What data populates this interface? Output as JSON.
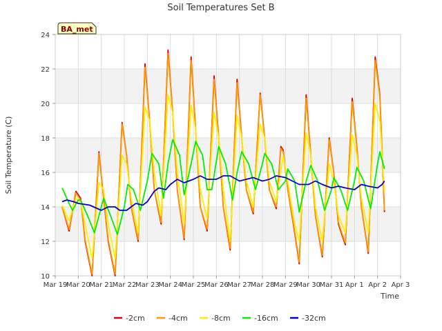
{
  "chart_data": {
    "type": "line",
    "title": "Soil Temperatures Set B",
    "xlabel": "Time",
    "ylabel": "Soil Temperature (C)",
    "badge": "BA_met",
    "ylim": [
      10,
      24
    ],
    "yticks": [
      10,
      12,
      14,
      16,
      18,
      20,
      22,
      24
    ],
    "xlim": [
      0,
      15
    ],
    "xticks": [
      {
        "x": 0,
        "label": "Mar 19"
      },
      {
        "x": 1,
        "label": "Mar 20"
      },
      {
        "x": 2,
        "label": "Mar 21"
      },
      {
        "x": 3,
        "label": "Mar 22"
      },
      {
        "x": 4,
        "label": "Mar 23"
      },
      {
        "x": 5,
        "label": "Mar 24"
      },
      {
        "x": 6,
        "label": "Mar 25"
      },
      {
        "x": 7,
        "label": "Mar 26"
      },
      {
        "x": 8,
        "label": "Mar 27"
      },
      {
        "x": 9,
        "label": "Mar 28"
      },
      {
        "x": 10,
        "label": "Mar 29"
      },
      {
        "x": 11,
        "label": "Mar 30"
      },
      {
        "x": 12,
        "label": "Mar 31"
      },
      {
        "x": 13,
        "label": "Apr 1"
      },
      {
        "x": 14,
        "label": "Apr 2"
      },
      {
        "x": 15,
        "label": "Apr 3"
      }
    ],
    "grid": true,
    "legend_position": "bottom",
    "x_units": "days since Mar 19",
    "series": [
      {
        "name": "-2cm",
        "color": "#dd0000",
        "points": [
          [
            0.3,
            14.0
          ],
          [
            0.6,
            12.6
          ],
          [
            0.9,
            14.9
          ],
          [
            1.1,
            14.5
          ],
          [
            1.3,
            12.0
          ],
          [
            1.6,
            10.0
          ],
          [
            1.9,
            17.2
          ],
          [
            2.1,
            14.5
          ],
          [
            2.3,
            12.0
          ],
          [
            2.6,
            10.0
          ],
          [
            2.9,
            18.9
          ],
          [
            3.1,
            17.0
          ],
          [
            3.3,
            14.0
          ],
          [
            3.6,
            12.0
          ],
          [
            3.9,
            22.3
          ],
          [
            4.1,
            19.0
          ],
          [
            4.3,
            15.0
          ],
          [
            4.6,
            13.0
          ],
          [
            4.9,
            23.1
          ],
          [
            5.1,
            19.5
          ],
          [
            5.3,
            15.0
          ],
          [
            5.6,
            12.1
          ],
          [
            5.9,
            22.7
          ],
          [
            6.1,
            18.5
          ],
          [
            6.3,
            14.0
          ],
          [
            6.6,
            12.6
          ],
          [
            6.9,
            21.6
          ],
          [
            7.1,
            18.0
          ],
          [
            7.3,
            14.0
          ],
          [
            7.6,
            11.5
          ],
          [
            7.9,
            21.4
          ],
          [
            8.1,
            18.0
          ],
          [
            8.3,
            15.0
          ],
          [
            8.6,
            13.6
          ],
          [
            8.9,
            20.6
          ],
          [
            9.1,
            18.0
          ],
          [
            9.3,
            15.0
          ],
          [
            9.6,
            13.9
          ],
          [
            9.8,
            17.5
          ],
          [
            9.9,
            17.3
          ],
          [
            10.1,
            15.0
          ],
          [
            10.4,
            12.5
          ],
          [
            10.6,
            10.7
          ],
          [
            10.9,
            20.5
          ],
          [
            11.1,
            17.0
          ],
          [
            11.3,
            13.5
          ],
          [
            11.6,
            11.1
          ],
          [
            11.9,
            18.0
          ],
          [
            12.1,
            16.0
          ],
          [
            12.3,
            13.0
          ],
          [
            12.6,
            11.8
          ],
          [
            12.9,
            20.3
          ],
          [
            13.1,
            17.5
          ],
          [
            13.3,
            14.0
          ],
          [
            13.6,
            11.3
          ],
          [
            13.9,
            22.7
          ],
          [
            14.1,
            20.5
          ],
          [
            14.3,
            13.7
          ]
        ]
      },
      {
        "name": "-4cm",
        "color": "#ff9900",
        "points": [
          [
            0.3,
            14.0
          ],
          [
            0.6,
            12.7
          ],
          [
            0.9,
            14.8
          ],
          [
            1.1,
            14.4
          ],
          [
            1.3,
            12.1
          ],
          [
            1.6,
            10.1
          ],
          [
            1.9,
            17.1
          ],
          [
            2.1,
            14.5
          ],
          [
            2.3,
            12.1
          ],
          [
            2.6,
            10.1
          ],
          [
            2.9,
            18.8
          ],
          [
            3.1,
            17.0
          ],
          [
            3.3,
            14.0
          ],
          [
            3.6,
            12.1
          ],
          [
            3.9,
            22.1
          ],
          [
            4.1,
            19.0
          ],
          [
            4.3,
            15.0
          ],
          [
            4.6,
            13.1
          ],
          [
            4.9,
            22.9
          ],
          [
            5.1,
            19.5
          ],
          [
            5.3,
            15.0
          ],
          [
            5.6,
            12.2
          ],
          [
            5.9,
            22.5
          ],
          [
            6.1,
            18.5
          ],
          [
            6.3,
            14.0
          ],
          [
            6.6,
            12.7
          ],
          [
            6.9,
            21.4
          ],
          [
            7.1,
            18.0
          ],
          [
            7.3,
            14.0
          ],
          [
            7.6,
            11.6
          ],
          [
            7.9,
            21.2
          ],
          [
            8.1,
            18.0
          ],
          [
            8.3,
            15.0
          ],
          [
            8.6,
            13.7
          ],
          [
            8.9,
            20.5
          ],
          [
            9.1,
            18.0
          ],
          [
            9.3,
            15.0
          ],
          [
            9.6,
            14.0
          ],
          [
            9.8,
            17.4
          ],
          [
            9.9,
            17.2
          ],
          [
            10.1,
            15.0
          ],
          [
            10.4,
            12.6
          ],
          [
            10.6,
            10.8
          ],
          [
            10.9,
            20.3
          ],
          [
            11.1,
            17.0
          ],
          [
            11.3,
            13.5
          ],
          [
            11.6,
            11.2
          ],
          [
            11.9,
            17.9
          ],
          [
            12.1,
            16.0
          ],
          [
            12.3,
            13.1
          ],
          [
            12.6,
            11.9
          ],
          [
            12.9,
            20.1
          ],
          [
            13.1,
            17.5
          ],
          [
            13.3,
            14.0
          ],
          [
            13.6,
            11.4
          ],
          [
            13.9,
            22.5
          ],
          [
            14.1,
            20.4
          ],
          [
            14.3,
            13.8
          ]
        ]
      },
      {
        "name": "-8cm",
        "color": "#ffee00",
        "points": [
          [
            0.3,
            14.1
          ],
          [
            0.6,
            13.2
          ],
          [
            0.9,
            14.5
          ],
          [
            1.1,
            14.3
          ],
          [
            1.3,
            13.0
          ],
          [
            1.6,
            11.0
          ],
          [
            1.9,
            15.4
          ],
          [
            2.1,
            15.0
          ],
          [
            2.3,
            13.0
          ],
          [
            2.6,
            11.0
          ],
          [
            2.9,
            17.0
          ],
          [
            3.1,
            16.5
          ],
          [
            3.3,
            14.5
          ],
          [
            3.6,
            12.5
          ],
          [
            3.9,
            19.8
          ],
          [
            4.1,
            19.0
          ],
          [
            4.3,
            16.0
          ],
          [
            4.6,
            13.5
          ],
          [
            4.9,
            20.5
          ],
          [
            5.1,
            19.5
          ],
          [
            5.3,
            16.0
          ],
          [
            5.6,
            13.0
          ],
          [
            5.9,
            19.9
          ],
          [
            6.1,
            18.5
          ],
          [
            6.3,
            15.0
          ],
          [
            6.6,
            13.3
          ],
          [
            6.9,
            19.5
          ],
          [
            7.1,
            18.0
          ],
          [
            7.3,
            15.0
          ],
          [
            7.6,
            12.0
          ],
          [
            7.9,
            19.3
          ],
          [
            8.1,
            18.0
          ],
          [
            8.3,
            15.5
          ],
          [
            8.6,
            14.0
          ],
          [
            8.9,
            18.8
          ],
          [
            9.1,
            18.0
          ],
          [
            9.3,
            15.5
          ],
          [
            9.6,
            14.3
          ],
          [
            9.9,
            17.0
          ],
          [
            10.1,
            15.5
          ],
          [
            10.4,
            13.0
          ],
          [
            10.6,
            12.0
          ],
          [
            10.9,
            18.3
          ],
          [
            11.1,
            17.0
          ],
          [
            11.3,
            14.0
          ],
          [
            11.6,
            12.0
          ],
          [
            11.9,
            16.5
          ],
          [
            12.1,
            15.5
          ],
          [
            12.3,
            13.5
          ],
          [
            12.6,
            12.5
          ],
          [
            12.9,
            18.2
          ],
          [
            13.1,
            17.0
          ],
          [
            13.3,
            14.5
          ],
          [
            13.6,
            12.5
          ],
          [
            13.9,
            20.0
          ],
          [
            14.1,
            19.0
          ],
          [
            14.3,
            14.9
          ]
        ]
      },
      {
        "name": "-16cm",
        "color": "#00ee00",
        "points": [
          [
            0.3,
            15.1
          ],
          [
            0.6,
            14.2
          ],
          [
            0.75,
            13.8
          ],
          [
            1.0,
            14.4
          ],
          [
            1.1,
            14.4
          ],
          [
            1.4,
            13.5
          ],
          [
            1.7,
            12.5
          ],
          [
            2.0,
            14.0
          ],
          [
            2.1,
            14.5
          ],
          [
            2.4,
            13.5
          ],
          [
            2.7,
            12.4
          ],
          [
            3.0,
            14.0
          ],
          [
            3.15,
            15.3
          ],
          [
            3.4,
            15.0
          ],
          [
            3.7,
            13.8
          ],
          [
            4.0,
            15.5
          ],
          [
            4.2,
            17.1
          ],
          [
            4.5,
            16.5
          ],
          [
            4.7,
            14.5
          ],
          [
            4.9,
            16.5
          ],
          [
            5.1,
            17.9
          ],
          [
            5.4,
            17.0
          ],
          [
            5.6,
            14.7
          ],
          [
            5.9,
            16.5
          ],
          [
            6.1,
            17.8
          ],
          [
            6.4,
            17.0
          ],
          [
            6.6,
            15.0
          ],
          [
            6.8,
            15.0
          ],
          [
            7.1,
            17.5
          ],
          [
            7.4,
            16.5
          ],
          [
            7.7,
            14.4
          ],
          [
            7.9,
            16.0
          ],
          [
            8.1,
            17.2
          ],
          [
            8.4,
            16.5
          ],
          [
            8.7,
            15.0
          ],
          [
            9.0,
            16.5
          ],
          [
            9.1,
            17.1
          ],
          [
            9.4,
            16.5
          ],
          [
            9.7,
            15.0
          ],
          [
            10.0,
            15.5
          ],
          [
            10.1,
            16.2
          ],
          [
            10.4,
            15.5
          ],
          [
            10.6,
            13.7
          ],
          [
            10.9,
            15.5
          ],
          [
            11.1,
            16.4
          ],
          [
            11.4,
            15.5
          ],
          [
            11.7,
            13.8
          ],
          [
            12.0,
            15.0
          ],
          [
            12.1,
            15.7
          ],
          [
            12.4,
            15.0
          ],
          [
            12.7,
            13.8
          ],
          [
            13.0,
            15.5
          ],
          [
            13.1,
            16.3
          ],
          [
            13.4,
            15.5
          ],
          [
            13.7,
            13.9
          ],
          [
            14.0,
            16.5
          ],
          [
            14.1,
            17.2
          ],
          [
            14.3,
            16.2
          ]
        ]
      },
      {
        "name": "-32cm",
        "color": "#0000cc",
        "points": [
          [
            0.3,
            14.3
          ],
          [
            0.5,
            14.4
          ],
          [
            0.8,
            14.3
          ],
          [
            1.0,
            14.2
          ],
          [
            1.5,
            14.1
          ],
          [
            2.0,
            13.8
          ],
          [
            2.3,
            14.0
          ],
          [
            2.6,
            14.0
          ],
          [
            2.8,
            13.8
          ],
          [
            3.1,
            13.8
          ],
          [
            3.5,
            14.2
          ],
          [
            3.8,
            14.1
          ],
          [
            4.0,
            14.3
          ],
          [
            4.3,
            14.9
          ],
          [
            4.5,
            15.1
          ],
          [
            4.8,
            15.0
          ],
          [
            5.0,
            15.3
          ],
          [
            5.3,
            15.6
          ],
          [
            5.6,
            15.4
          ],
          [
            6.0,
            15.6
          ],
          [
            6.3,
            15.8
          ],
          [
            6.6,
            15.6
          ],
          [
            7.0,
            15.6
          ],
          [
            7.3,
            15.8
          ],
          [
            7.6,
            15.8
          ],
          [
            8.0,
            15.5
          ],
          [
            8.3,
            15.6
          ],
          [
            8.6,
            15.7
          ],
          [
            9.0,
            15.5
          ],
          [
            9.3,
            15.6
          ],
          [
            9.6,
            15.8
          ],
          [
            10.0,
            15.7
          ],
          [
            10.3,
            15.5
          ],
          [
            10.6,
            15.3
          ],
          [
            11.0,
            15.3
          ],
          [
            11.3,
            15.5
          ],
          [
            11.6,
            15.3
          ],
          [
            12.0,
            15.1
          ],
          [
            12.3,
            15.2
          ],
          [
            12.6,
            15.1
          ],
          [
            13.0,
            15.0
          ],
          [
            13.3,
            15.3
          ],
          [
            13.6,
            15.2
          ],
          [
            14.0,
            15.1
          ],
          [
            14.2,
            15.3
          ],
          [
            14.3,
            15.5
          ]
        ]
      }
    ]
  }
}
